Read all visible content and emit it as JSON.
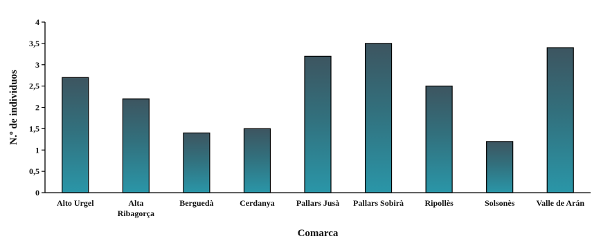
{
  "chart_data": {
    "type": "bar",
    "categories": [
      "Alto Urgel",
      "Alta Ribagorça",
      "Berguedà",
      "Cerdanya",
      "Pallars Jusà",
      "Pallars Sobirà",
      "Ripollès",
      "Solsonès",
      "Valle de Arán"
    ],
    "category_lines": [
      [
        "Alto Urgel"
      ],
      [
        "Alta",
        "Ribagorça"
      ],
      [
        "Berguedà"
      ],
      [
        "Cerdanya"
      ],
      [
        "Pallars Jusà"
      ],
      [
        "Pallars Sobirà"
      ],
      [
        "Ripollès"
      ],
      [
        "Solsonès"
      ],
      [
        "Valle de Arán"
      ]
    ],
    "values": [
      2.7,
      2.2,
      1.4,
      1.5,
      3.2,
      3.5,
      2.5,
      1.2,
      3.4
    ],
    "ylim": [
      0,
      4
    ],
    "yticks": [
      0,
      0.5,
      1,
      1.5,
      2,
      2.5,
      3,
      3.5,
      4
    ],
    "ytick_labels": [
      "0",
      "0,5",
      "1",
      "1,5",
      "2",
      "2,5",
      "3",
      "3,5",
      "4"
    ],
    "xlabel": "Comarca",
    "ylabel": "N.º de individuos",
    "title": "",
    "grid": false,
    "colors": {
      "bar_top": "#3d5560",
      "bar_bottom": "#2a96a8",
      "axis": "#000000"
    }
  }
}
